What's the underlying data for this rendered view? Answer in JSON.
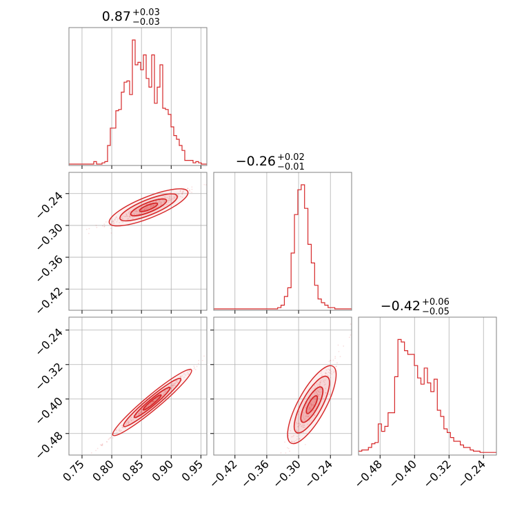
{
  "chart_data": {
    "type": "corner",
    "color": "#d62728",
    "parameters": [
      {
        "range": [
          0.728,
          0.96
        ],
        "ticks": [
          "0.75",
          "0.80",
          "0.85",
          "0.90",
          "0.95"
        ],
        "title": {
          "value": "0.87",
          "plus": "+0.03",
          "minus": "−0.03"
        }
      },
      {
        "range": [
          -0.46,
          -0.2
        ],
        "ticks": [
          "−0.42",
          "−0.36",
          "−0.30",
          "−0.24"
        ],
        "title": {
          "value": "−0.26",
          "plus": "+0.02",
          "minus": "−0.01"
        }
      },
      {
        "range": [
          -0.53,
          -0.21
        ],
        "ticks": [
          "−0.48",
          "−0.40",
          "−0.32",
          "−0.24"
        ],
        "title": {
          "value": "−0.42",
          "plus": "+0.06",
          "minus": "−0.05"
        }
      }
    ],
    "histograms": [
      {
        "param": 0,
        "bin_edges": [
          0.728,
          0.96
        ],
        "counts": [
          0,
          0,
          0,
          0,
          0,
          0,
          0,
          0,
          0,
          0.02,
          0,
          0,
          0.01,
          0.02,
          0.15,
          0.29,
          0.29,
          0.43,
          0.44,
          0.58,
          0.66,
          0.67,
          0.56,
          1.0,
          0.8,
          0.82,
          0.76,
          0.88,
          0.69,
          0.62,
          0.88,
          0.49,
          0.62,
          0.8,
          0.45,
          0.44,
          0.4,
          0.3,
          0.23,
          0.2,
          0.15,
          0.11,
          0.03,
          0.03,
          0.03,
          0.01,
          0.02,
          0.01,
          0,
          0
        ]
      },
      {
        "param": 1,
        "bin_edges": [
          -0.46,
          -0.2
        ],
        "counts": [
          0,
          0,
          0,
          0,
          0,
          0,
          0,
          0,
          0,
          0,
          0,
          0,
          0,
          0,
          0,
          0,
          0,
          0,
          0,
          0.01,
          0.03,
          0.1,
          0.17,
          0.45,
          0.76,
          0.96,
          1.0,
          0.81,
          0.52,
          0.37,
          0.19,
          0.08,
          0.05,
          0.03,
          0.01,
          0.01,
          0,
          0,
          0,
          0,
          0
        ]
      },
      {
        "param": 2,
        "bin_edges": [
          -0.53,
          -0.21
        ],
        "counts": [
          0.02,
          0.03,
          0.03,
          0.05,
          0.08,
          0.09,
          0.24,
          0.18,
          0.22,
          0.33,
          0.33,
          0.62,
          0.92,
          0.9,
          0.83,
          0.8,
          0.8,
          0.71,
          0.61,
          0.56,
          0.69,
          0.57,
          0.5,
          0.6,
          0.35,
          0.3,
          0.2,
          0.17,
          0.13,
          0.1,
          0.1,
          0.07,
          0.05,
          0.05,
          0.03,
          0.02,
          0.02,
          0.01,
          0.01,
          0.01,
          0.01,
          0.01
        ]
      }
    ],
    "correlations": [
      {
        "pair": [
          0,
          1
        ],
        "center": [
          0.862,
          -0.266
        ],
        "slope": 0.45,
        "spread": 0.004
      },
      {
        "pair": [
          0,
          2
        ],
        "center": [
          0.868,
          -0.408
        ],
        "slope": 1.15,
        "spread": 0.003
      },
      {
        "pair": [
          1,
          2
        ],
        "center": [
          -0.275,
          -0.413
        ],
        "slope": 2.25,
        "spread": 0.014
      }
    ]
  }
}
